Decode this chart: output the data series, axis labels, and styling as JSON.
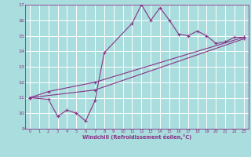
{
  "bg_color": "#aadddd",
  "grid_color": "#ffffff",
  "line_color": "#883388",
  "xlabel": "Windchill (Refroidissement éolien,°C)",
  "xlim": [
    -0.5,
    23.5
  ],
  "ylim": [
    9,
    17
  ],
  "yticks": [
    9,
    10,
    11,
    12,
    13,
    14,
    15,
    16,
    17
  ],
  "xticks": [
    0,
    1,
    2,
    3,
    4,
    5,
    6,
    7,
    8,
    9,
    10,
    11,
    12,
    13,
    14,
    15,
    16,
    17,
    18,
    19,
    20,
    21,
    22,
    23
  ],
  "line1_x": [
    0,
    2,
    3,
    4,
    5,
    6,
    7,
    8,
    11,
    12,
    13,
    14,
    15,
    16,
    17,
    18,
    19,
    20,
    21,
    22,
    23
  ],
  "line1_y": [
    11.0,
    10.9,
    9.8,
    10.2,
    10.0,
    9.5,
    10.8,
    13.9,
    15.8,
    17.0,
    16.0,
    16.8,
    16.0,
    15.1,
    15.0,
    15.3,
    15.0,
    14.5,
    14.6,
    14.9,
    14.9
  ],
  "line2_x": [
    0,
    2,
    7,
    23
  ],
  "line2_y": [
    11.0,
    11.4,
    12.0,
    14.9
  ],
  "line3_x": [
    0,
    7,
    23
  ],
  "line3_y": [
    11.0,
    11.5,
    14.8
  ]
}
